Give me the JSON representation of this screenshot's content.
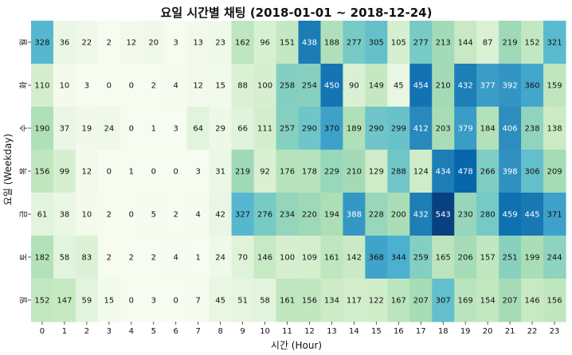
{
  "chart_data": {
    "type": "heatmap",
    "title": "요일 시간별 채팅 (2018-01-01  ~ 2018-12-24)",
    "xlabel": "시간 (Hour)",
    "ylabel": "요일 (Weekday)",
    "x_categories": [
      "0",
      "1",
      "2",
      "3",
      "4",
      "5",
      "6",
      "7",
      "8",
      "9",
      "10",
      "11",
      "12",
      "13",
      "14",
      "15",
      "16",
      "17",
      "18",
      "19",
      "20",
      "21",
      "22",
      "23"
    ],
    "y_categories": [
      "월",
      "화",
      "수",
      "목",
      "금",
      "토",
      "일"
    ],
    "values": [
      [
        328,
        36,
        22,
        2,
        12,
        20,
        3,
        13,
        23,
        162,
        96,
        151,
        438,
        188,
        277,
        305,
        105,
        277,
        213,
        144,
        87,
        219,
        152,
        321
      ],
      [
        110,
        10,
        3,
        0,
        0,
        2,
        4,
        12,
        15,
        88,
        100,
        258,
        254,
        450,
        90,
        149,
        45,
        454,
        210,
        432,
        377,
        392,
        360,
        159
      ],
      [
        190,
        37,
        19,
        24,
        0,
        1,
        3,
        64,
        29,
        66,
        111,
        257,
        290,
        370,
        189,
        290,
        299,
        412,
        203,
        379,
        184,
        406,
        238,
        138
      ],
      [
        156,
        99,
        12,
        0,
        1,
        0,
        0,
        3,
        31,
        219,
        92,
        176,
        178,
        229,
        210,
        129,
        288,
        124,
        434,
        478,
        266,
        398,
        306,
        209
      ],
      [
        61,
        38,
        10,
        2,
        0,
        5,
        2,
        4,
        42,
        327,
        276,
        234,
        220,
        194,
        388,
        228,
        200,
        432,
        543,
        230,
        280,
        459,
        445,
        371
      ],
      [
        182,
        58,
        83,
        2,
        2,
        2,
        4,
        1,
        24,
        70,
        146,
        100,
        109,
        161,
        142,
        368,
        344,
        259,
        165,
        206,
        157,
        251,
        199,
        244
      ],
      [
        152,
        147,
        59,
        15,
        0,
        3,
        0,
        7,
        45,
        51,
        58,
        161,
        156,
        134,
        117,
        122,
        167,
        207,
        307,
        169,
        154,
        207,
        146,
        156
      ]
    ],
    "colormap": "GnBu",
    "vmin": 0,
    "vmax": 543,
    "annotated": true,
    "grid": false,
    "legend": "none"
  }
}
